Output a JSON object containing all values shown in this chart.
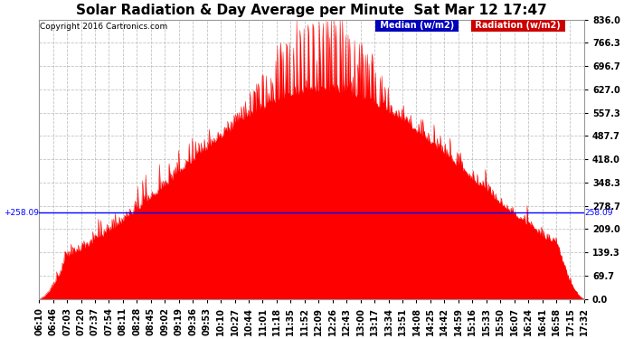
{
  "title": "Solar Radiation & Day Average per Minute  Sat Mar 12 17:47",
  "copyright": "Copyright 2016 Cartronics.com",
  "ylabel_right": "Radiation (w/m2)",
  "median_label": "Median (w/m2)",
  "median_value": 258.09,
  "ymin": 0.0,
  "ymax": 836.0,
  "yticks": [
    0.0,
    69.7,
    139.3,
    209.0,
    278.7,
    348.3,
    418.0,
    487.7,
    557.3,
    627.0,
    696.7,
    766.3,
    836.0
  ],
  "xtick_labels": [
    "06:10",
    "06:46",
    "07:03",
    "07:20",
    "07:37",
    "07:54",
    "08:11",
    "08:28",
    "08:45",
    "09:02",
    "09:19",
    "09:36",
    "09:53",
    "10:10",
    "10:27",
    "10:44",
    "11:01",
    "11:18",
    "11:35",
    "11:52",
    "12:09",
    "12:26",
    "12:43",
    "13:00",
    "13:17",
    "13:34",
    "13:51",
    "14:08",
    "14:25",
    "14:42",
    "14:59",
    "15:16",
    "15:33",
    "15:50",
    "16:07",
    "16:24",
    "16:41",
    "16:58",
    "17:15",
    "17:32"
  ],
  "background_color": "#ffffff",
  "plot_bg_color": "#ffffff",
  "grid_color": "#aaaaaa",
  "line_color": "#0000ff",
  "fill_color": "#ff0000",
  "title_fontsize": 11,
  "tick_fontsize": 7,
  "legend_median_bg": "#0000bb",
  "legend_radiation_bg": "#cc0000",
  "figwidth": 6.9,
  "figheight": 3.75,
  "dpi": 100
}
